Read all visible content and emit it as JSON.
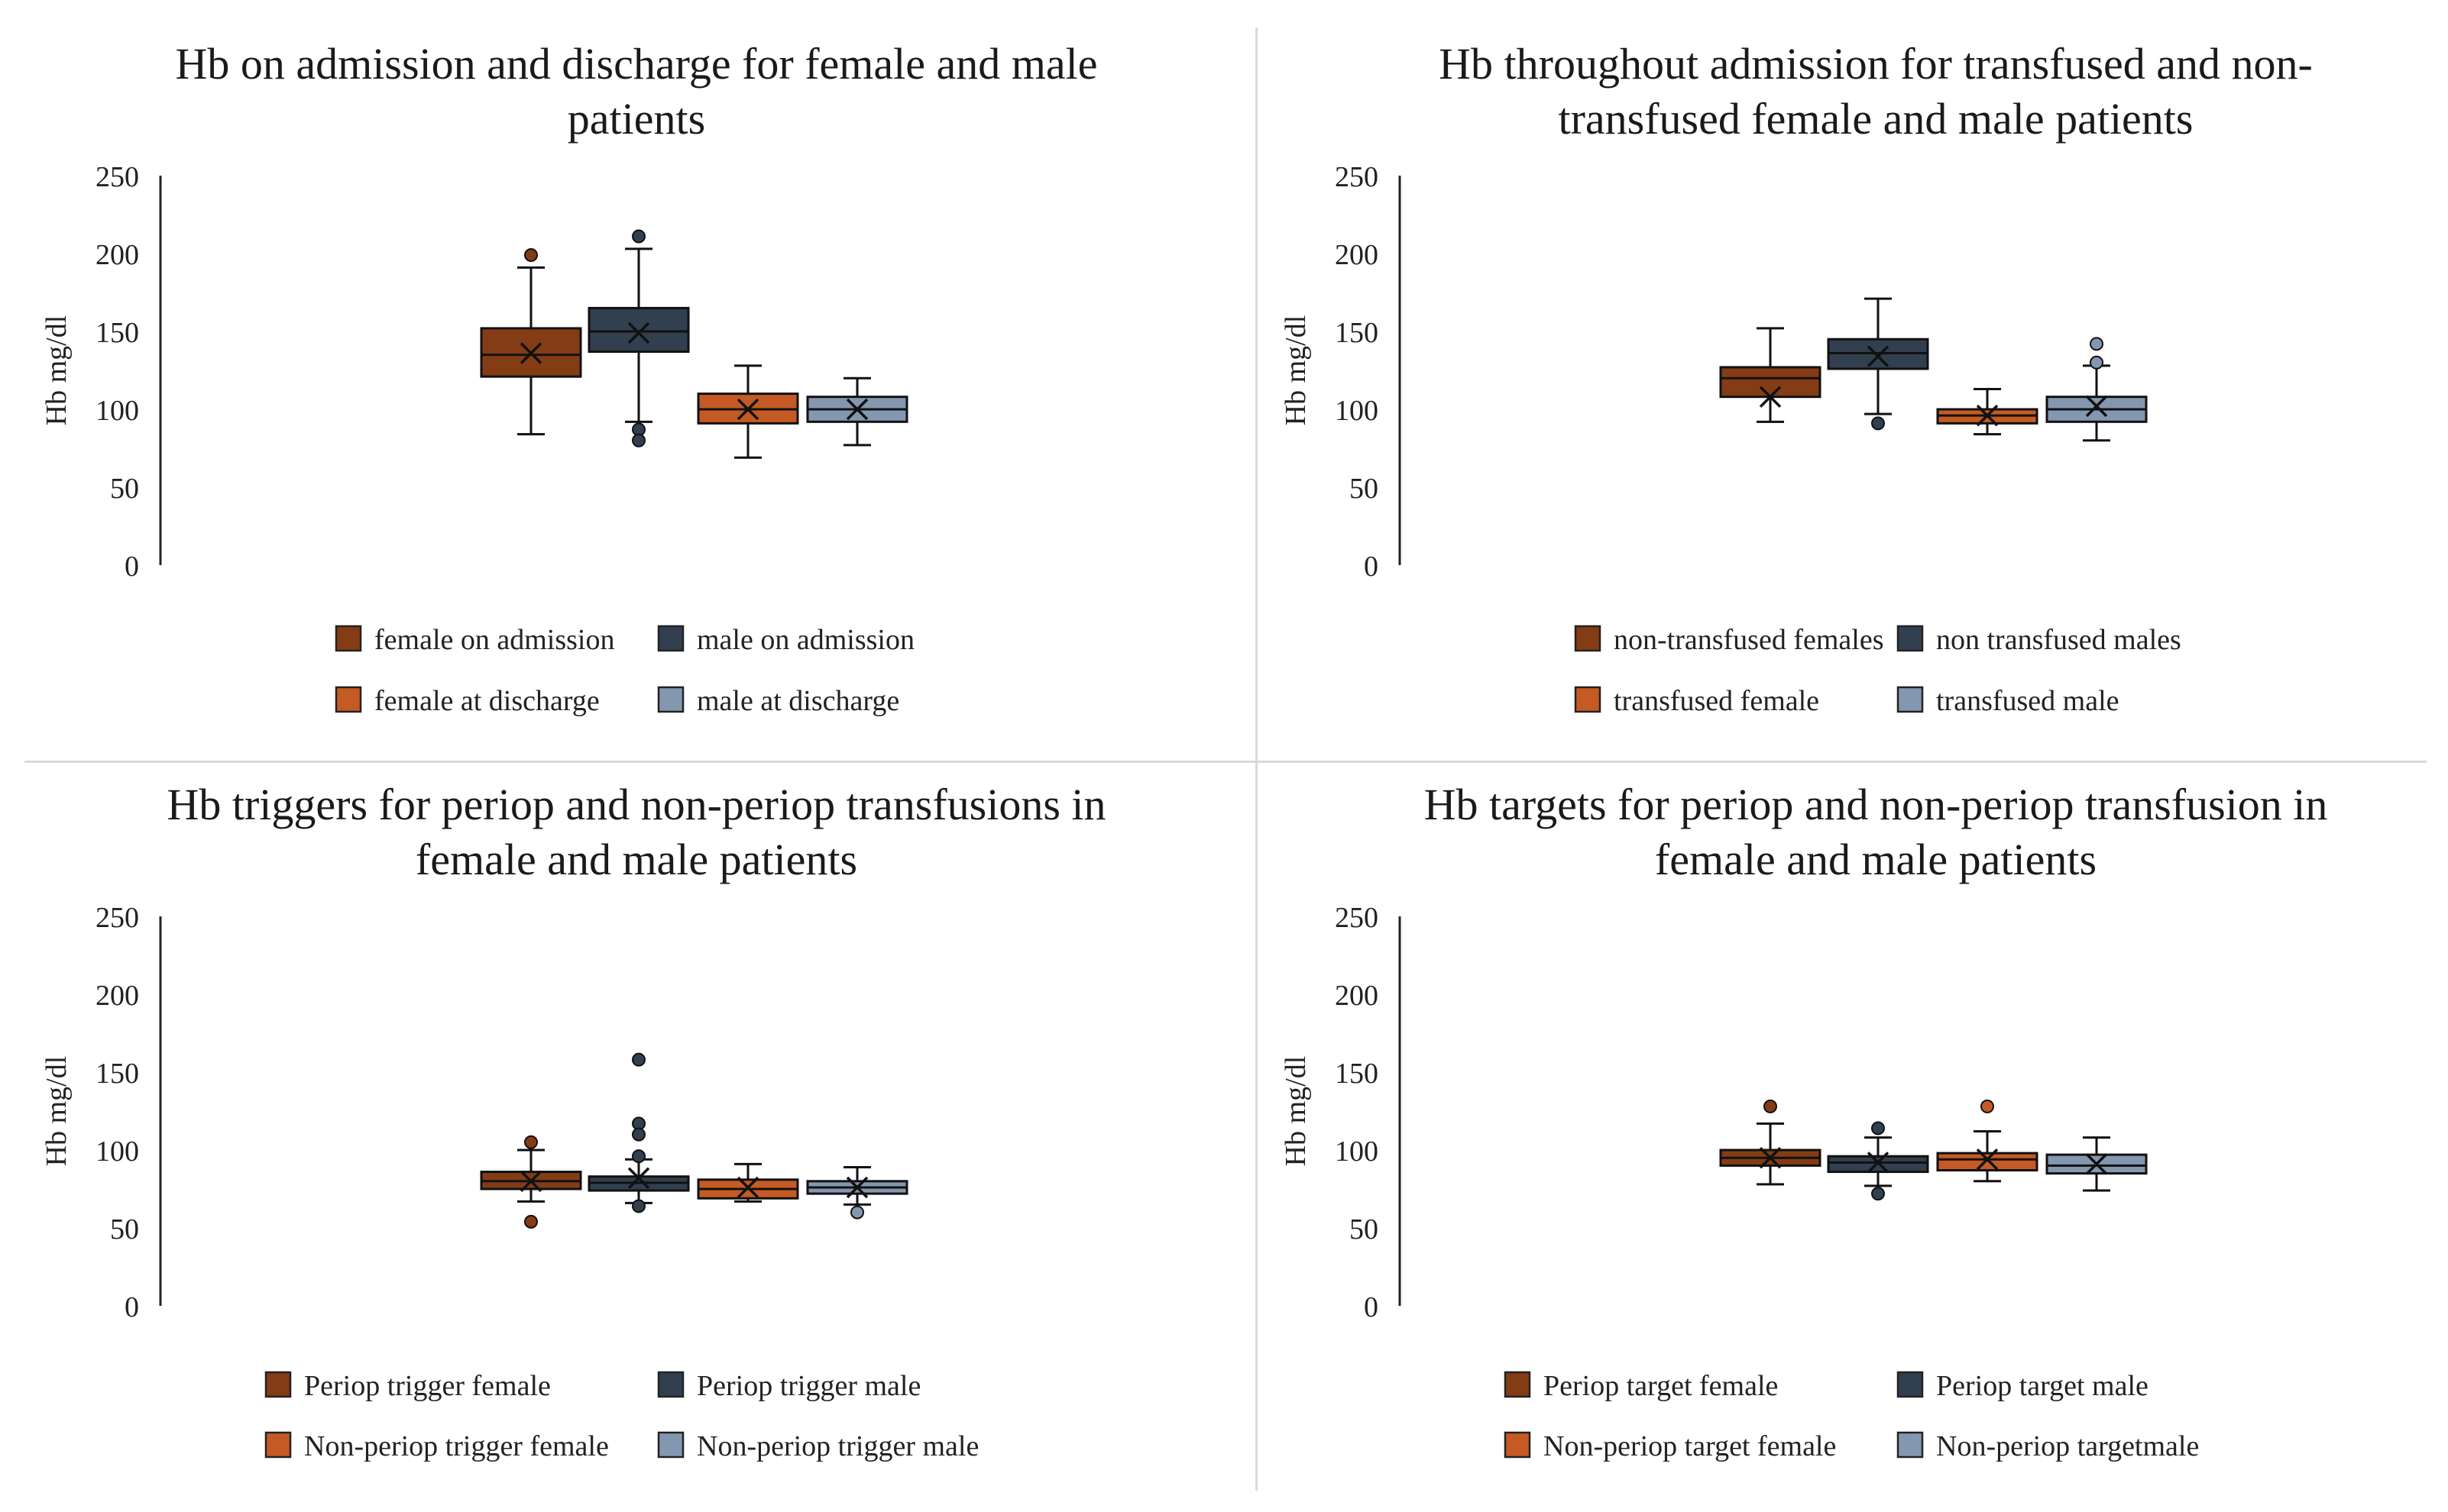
{
  "chart_data": [
    {
      "type": "box",
      "title": "Hb on admission and discharge for female and male patients",
      "title_lines": [
        "Hb on admission and discharge for female and male",
        "patients"
      ],
      "ylabel": "Hb mg/dl",
      "ylim": [
        0,
        250
      ],
      "yticks": [
        0,
        50,
        100,
        150,
        200,
        250
      ],
      "legend": [
        "female on admission",
        "male on admission",
        "female at discharge",
        "male at discharge"
      ],
      "series": [
        {
          "name": "female on admission",
          "color": "#843c15",
          "min": 84,
          "q1": 121,
          "median": 135,
          "q3": 152,
          "max": 191,
          "mean": 136,
          "outliers": [
            199
          ]
        },
        {
          "name": "male on admission",
          "color": "#323f4f",
          "min": 92,
          "q1": 137,
          "median": 150,
          "q3": 165,
          "max": 203,
          "mean": 149,
          "outliers": [
            211,
            87,
            80
          ]
        },
        {
          "name": "female at discharge",
          "color": "#c55a24",
          "min": 69,
          "q1": 91,
          "median": 100,
          "q3": 110,
          "max": 128,
          "mean": 100,
          "outliers": []
        },
        {
          "name": "male at discharge",
          "color": "#8497b0",
          "min": 77,
          "q1": 92,
          "median": 100,
          "q3": 108,
          "max": 120,
          "mean": 100,
          "outliers": []
        }
      ]
    },
    {
      "type": "box",
      "title": "Hb throughout admission for transfused and non-transfused female and male patients",
      "title_lines": [
        "Hb throughout admission for transfused and non-",
        "transfused female and male patients"
      ],
      "ylabel": "Hb mg/dl",
      "ylim": [
        0,
        250
      ],
      "yticks": [
        0,
        50,
        100,
        150,
        200,
        250
      ],
      "legend": [
        "non-transfused females",
        "non transfused males",
        "transfused female",
        "transfused male"
      ],
      "series": [
        {
          "name": "non-transfused females",
          "color": "#843c15",
          "min": 92,
          "q1": 108,
          "median": 120,
          "q3": 127,
          "max": 152,
          "mean": 108,
          "outliers": []
        },
        {
          "name": "non transfused males",
          "color": "#323f4f",
          "min": 97,
          "q1": 126,
          "median": 136,
          "q3": 145,
          "max": 171,
          "mean": 134,
          "outliers": [
            91
          ]
        },
        {
          "name": "transfused female",
          "color": "#c55a24",
          "min": 84,
          "q1": 91,
          "median": 96,
          "q3": 100,
          "max": 113,
          "mean": 96,
          "outliers": []
        },
        {
          "name": "transfused male",
          "color": "#8497b0",
          "min": 80,
          "q1": 92,
          "median": 100,
          "q3": 108,
          "max": 128,
          "mean": 102,
          "outliers": [
            142,
            130
          ]
        }
      ]
    },
    {
      "type": "box",
      "title": "Hb triggers for periop and non-periop transfusions in female and male patients",
      "title_lines": [
        "Hb triggers for periop and non-periop transfusions in",
        "female and male patients"
      ],
      "ylabel": "Hb mg/dl",
      "ylim": [
        0,
        250
      ],
      "yticks": [
        0,
        50,
        100,
        150,
        200,
        250
      ],
      "legend": [
        "Periop trigger female",
        "Periop trigger male",
        "Non-periop trigger female",
        "Non-periop trigger male"
      ],
      "series": [
        {
          "name": "Periop trigger female",
          "color": "#843c15",
          "min": 67,
          "q1": 75,
          "median": 80,
          "q3": 86,
          "max": 100,
          "mean": 80,
          "outliers": [
            105,
            54
          ]
        },
        {
          "name": "Periop trigger male",
          "color": "#323f4f",
          "min": 66,
          "q1": 74,
          "median": 79,
          "q3": 83,
          "max": 94,
          "mean": 82,
          "outliers": [
            158,
            117,
            110,
            96,
            64
          ]
        },
        {
          "name": "Non-periop trigger female",
          "color": "#c55a24",
          "min": 67,
          "q1": 69,
          "median": 75,
          "q3": 81,
          "max": 91,
          "mean": 76,
          "outliers": []
        },
        {
          "name": "Non-periop trigger male",
          "color": "#8497b0",
          "min": 65,
          "q1": 72,
          "median": 76,
          "q3": 80,
          "max": 89,
          "mean": 76,
          "outliers": [
            60
          ]
        }
      ]
    },
    {
      "type": "box",
      "title": "Hb targets for periop and non-periop transfusion in female and male patients",
      "title_lines": [
        "Hb targets for periop and non-periop transfusion in",
        "female and male patients"
      ],
      "ylabel": "Hb mg/dl",
      "ylim": [
        0,
        250
      ],
      "yticks": [
        0,
        50,
        100,
        150,
        200,
        250
      ],
      "legend": [
        "Periop target female",
        "Periop target male",
        "Non-periop target female",
        "Non-periop targetmale"
      ],
      "series": [
        {
          "name": "Periop target female",
          "color": "#843c15",
          "min": 78,
          "q1": 90,
          "median": 95,
          "q3": 100,
          "max": 117,
          "mean": 95,
          "outliers": [
            128
          ]
        },
        {
          "name": "Periop target male",
          "color": "#323f4f",
          "min": 77,
          "q1": 86,
          "median": 92,
          "q3": 96,
          "max": 108,
          "mean": 92,
          "outliers": [
            114,
            72
          ]
        },
        {
          "name": "Non-periop target female",
          "color": "#c55a24",
          "min": 80,
          "q1": 87,
          "median": 94,
          "q3": 98,
          "max": 112,
          "mean": 94,
          "outliers": [
            128
          ]
        },
        {
          "name": "Non-periop targetmale",
          "color": "#8497b0",
          "min": 74,
          "q1": 85,
          "median": 90,
          "q3": 97,
          "max": 108,
          "mean": 91,
          "outliers": []
        }
      ]
    }
  ]
}
